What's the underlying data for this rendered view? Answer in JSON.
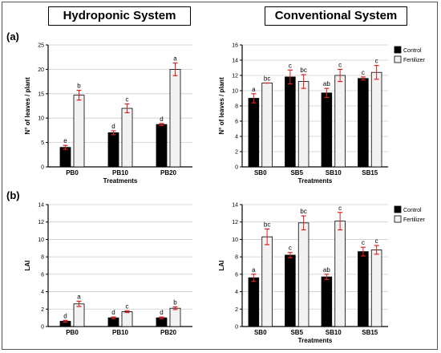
{
  "titles": {
    "left": "Hydroponic System",
    "right": "Conventional System"
  },
  "panel_labels": {
    "a": "(a)",
    "b": "(b)"
  },
  "legend": {
    "control": "Control",
    "fertilizer": "Fertilizer"
  },
  "colors": {
    "control": "#000000",
    "fertilizer": "#f2f2f2",
    "error_bar": "#e02020",
    "grid": "#cccccc"
  },
  "chart_data": [
    {
      "type": "bar",
      "id": "hydro-leaves",
      "categories": [
        "PB0",
        "PB10",
        "PB20"
      ],
      "series": [
        {
          "name": "Control",
          "values": [
            4.0,
            7.0,
            8.7
          ],
          "errors": [
            0.4,
            0.4,
            0.2
          ],
          "letters": [
            "e",
            "d",
            "d"
          ]
        },
        {
          "name": "Fertilizer",
          "values": [
            14.7,
            12.0,
            20.0
          ],
          "errors": [
            1.0,
            0.9,
            1.3
          ],
          "letters": [
            "b",
            "c",
            "a"
          ]
        }
      ],
      "xlabel": "Treatments",
      "ylabel": "N° of leaves / plant",
      "ylim": [
        0,
        25
      ],
      "yticks": [
        0,
        5,
        10,
        15,
        20,
        25
      ],
      "grid": true,
      "legend": false
    },
    {
      "type": "bar",
      "id": "conv-leaves",
      "categories": [
        "SB0",
        "SB5",
        "SB10",
        "SB15"
      ],
      "series": [
        {
          "name": "Control",
          "values": [
            9.0,
            11.8,
            9.7,
            11.6
          ],
          "errors": [
            0.6,
            0.9,
            0.6,
            0.2
          ],
          "letters": [
            "a",
            "c",
            "ab",
            "c"
          ]
        },
        {
          "name": "Fertilizer",
          "values": [
            11.0,
            11.2,
            12.0,
            12.4
          ],
          "errors": [
            0.0,
            0.9,
            0.8,
            0.9
          ],
          "letters": [
            "bc",
            "bc",
            "c",
            "c"
          ]
        }
      ],
      "xlabel": "Treatments",
      "ylabel": "N° of leaves / plant",
      "ylim": [
        0,
        16
      ],
      "yticks": [
        0,
        2,
        4,
        6,
        8,
        10,
        12,
        14,
        16
      ],
      "grid": true,
      "legend": "top-right"
    },
    {
      "type": "bar",
      "id": "hydro-lai",
      "categories": [
        "PB0",
        "PB10",
        "PB20"
      ],
      "series": [
        {
          "name": "Control",
          "values": [
            0.6,
            1.0,
            1.0
          ],
          "errors": [
            0.1,
            0.1,
            0.1
          ],
          "letters": [
            "d",
            "d",
            "d"
          ]
        },
        {
          "name": "Fertilizer",
          "values": [
            2.6,
            1.7,
            2.1
          ],
          "errors": [
            0.3,
            0.1,
            0.15
          ],
          "letters": [
            "a",
            "c",
            "b"
          ]
        }
      ],
      "xlabel": "",
      "ylabel": "LAI",
      "ylim": [
        0,
        14
      ],
      "yticks": [
        0,
        2,
        4,
        6,
        8,
        10,
        12,
        14
      ],
      "grid": true,
      "legend": false
    },
    {
      "type": "bar",
      "id": "conv-lai",
      "categories": [
        "SB0",
        "SB5",
        "SB10",
        "SB15"
      ],
      "series": [
        {
          "name": "Control",
          "values": [
            5.6,
            8.2,
            5.7,
            8.6
          ],
          "errors": [
            0.4,
            0.3,
            0.3,
            0.5
          ],
          "letters": [
            "a",
            "c",
            "ab",
            "c"
          ]
        },
        {
          "name": "Fertilizer",
          "values": [
            10.3,
            11.9,
            12.1,
            8.8
          ],
          "errors": [
            0.9,
            0.8,
            1.0,
            0.5
          ],
          "letters": [
            "bc",
            "bc",
            "c",
            "c"
          ]
        }
      ],
      "xlabel": "Treatments",
      "ylabel": "LAI",
      "ylim": [
        0,
        14
      ],
      "yticks": [
        0,
        2,
        4,
        6,
        8,
        10,
        12,
        14
      ],
      "grid": true,
      "legend": "top-right"
    }
  ]
}
